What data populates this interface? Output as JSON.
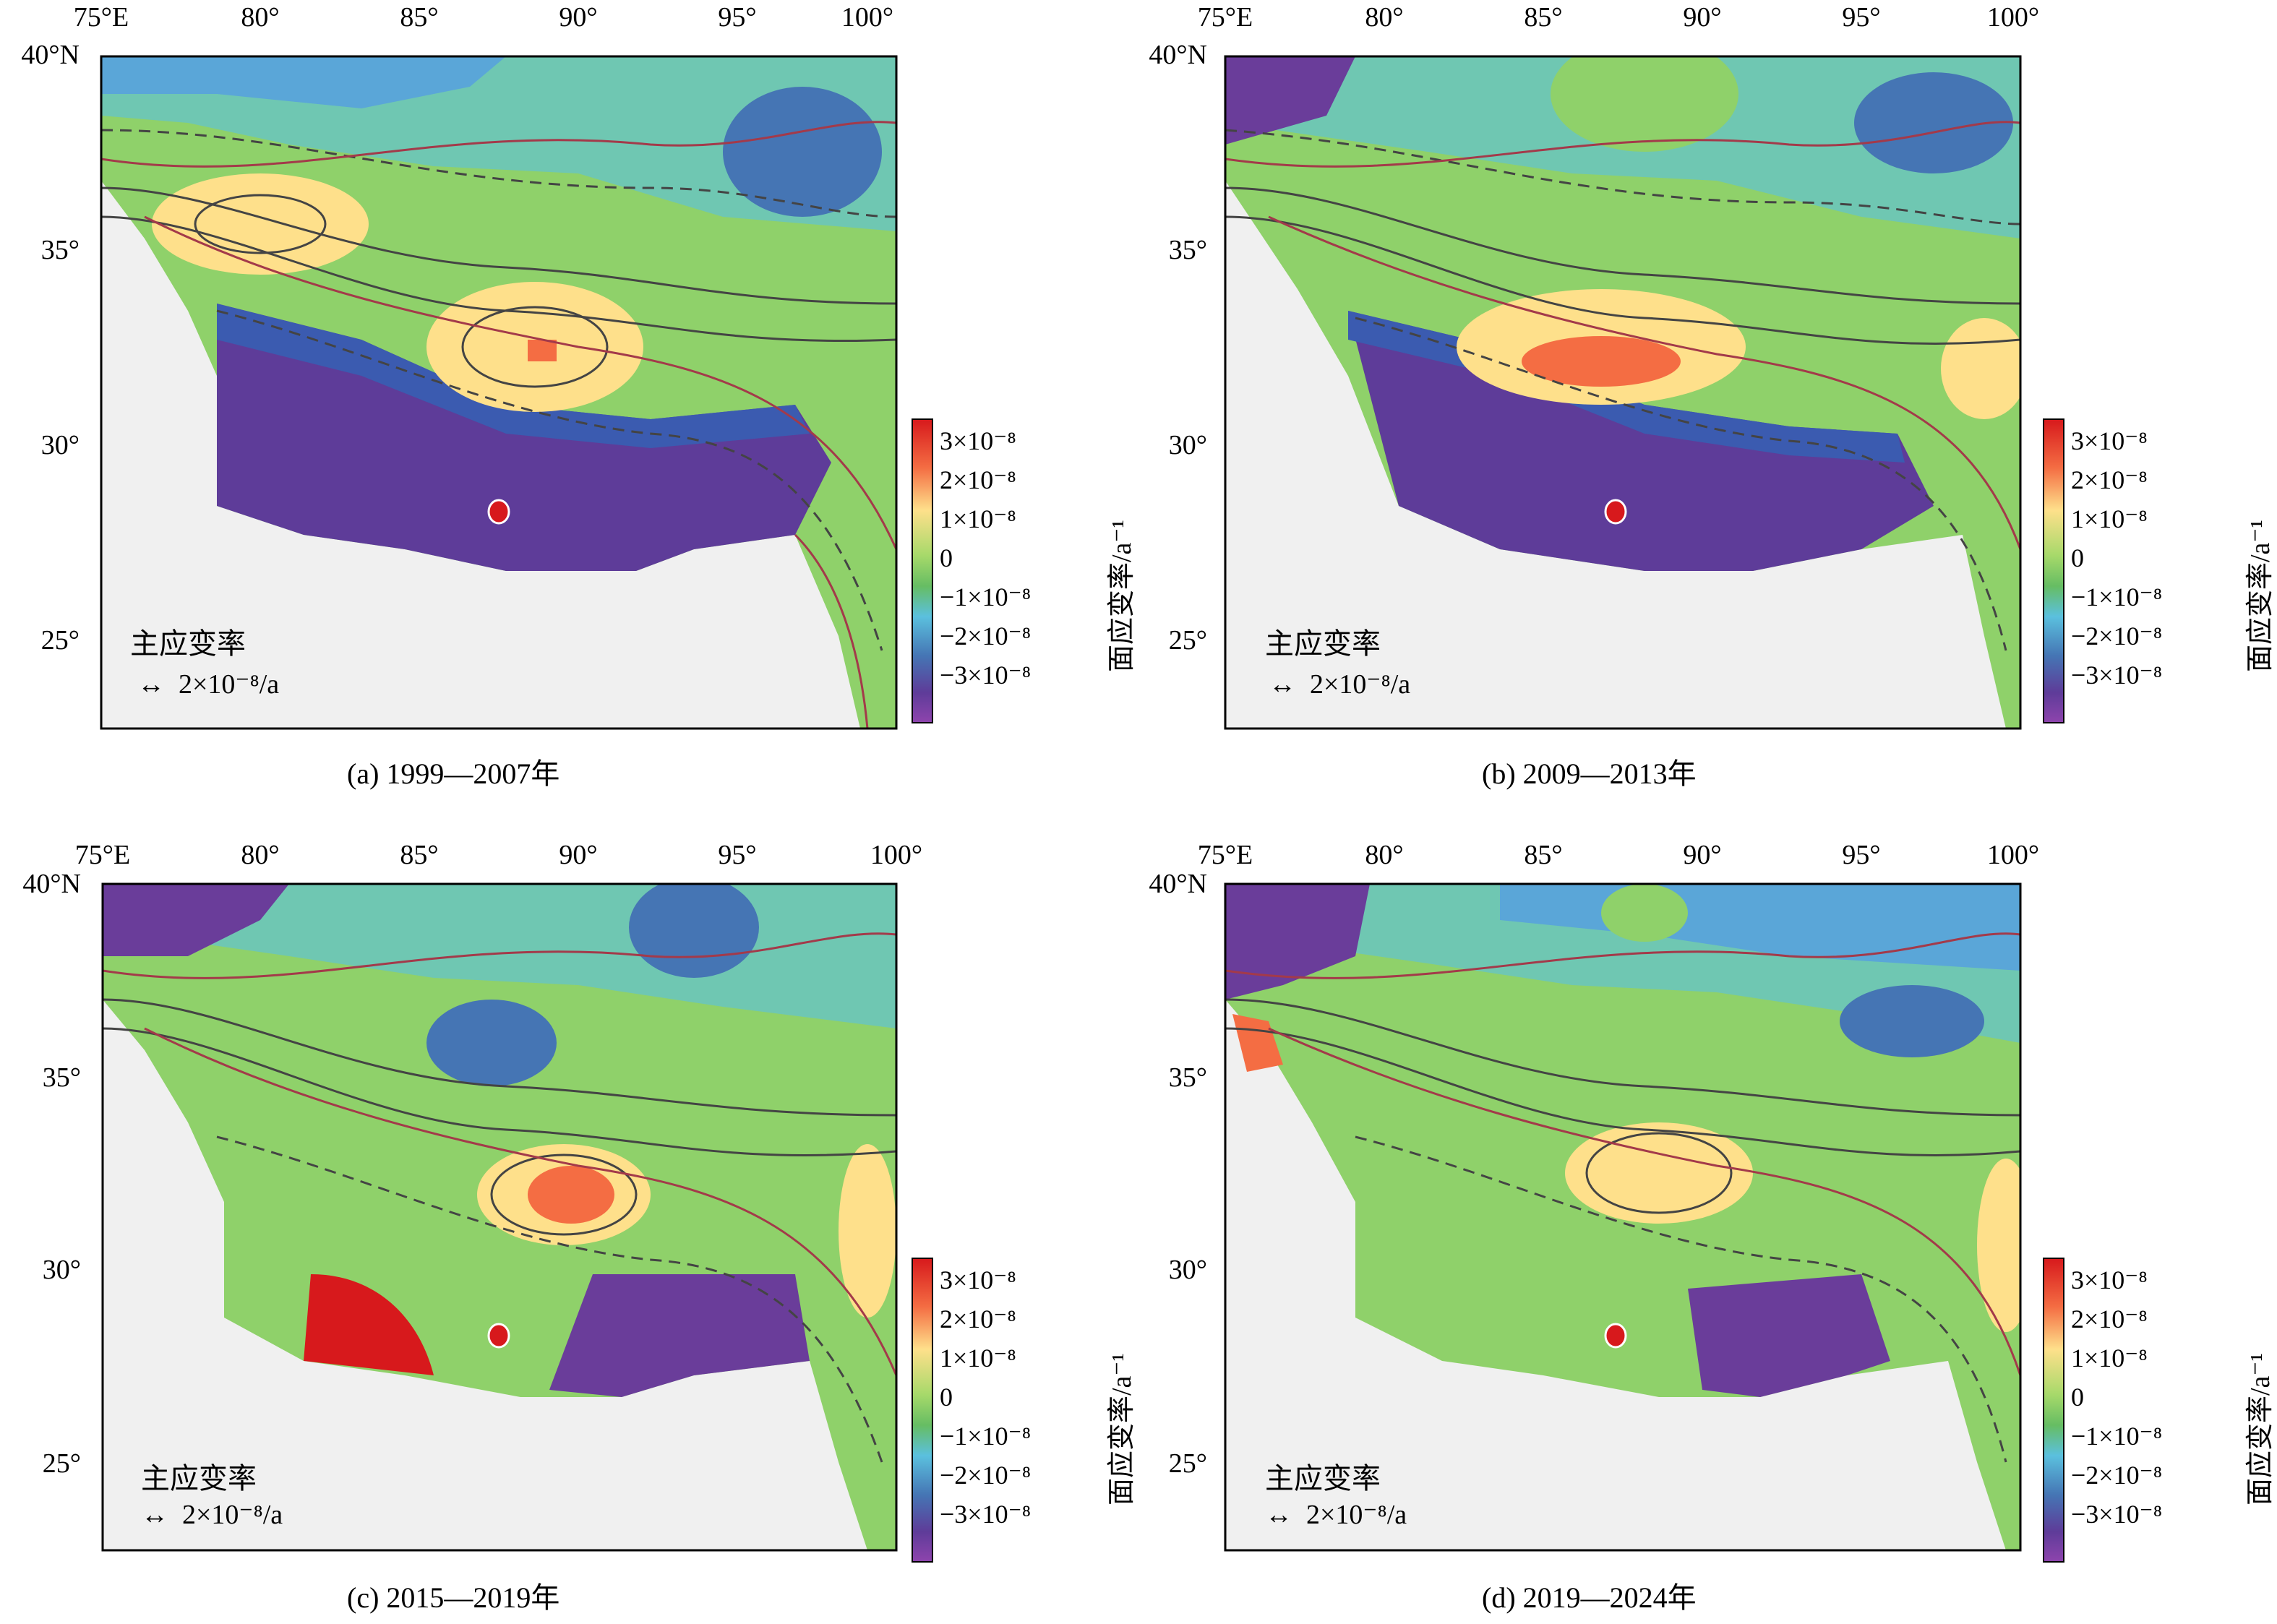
{
  "figure": {
    "lon_ticks": [
      "75°E",
      "80°",
      "85°",
      "90°",
      "95°",
      "100°"
    ],
    "lat_ticks": [
      "40°N",
      "35°",
      "30°",
      "25°"
    ],
    "legend_title": "主应变率",
    "legend_scale": "2×10⁻⁸/a",
    "colorbar_title": "面应变率/a⁻¹",
    "colorbar_ticks": [
      "3×10⁻⁸",
      "2×10⁻⁸",
      "1×10⁻⁸",
      "0",
      "−1×10⁻⁸",
      "−2×10⁻⁸",
      "−3×10⁻⁸"
    ],
    "colorbar_colors": [
      "#d7191c",
      "#f46d43",
      "#fdae61",
      "#fee08b",
      "#a6d96a",
      "#66bd63",
      "#66c2a5",
      "#5bc0de",
      "#4575b4",
      "#313695",
      "#6a3d9a",
      "#8e44ad"
    ]
  },
  "panels": [
    {
      "caption": "(a) 1999—2007年"
    },
    {
      "caption": "(b) 2009—2013年"
    },
    {
      "caption": "(c) 2015—2019年"
    },
    {
      "caption": "(d) 2019—2024年"
    }
  ]
}
